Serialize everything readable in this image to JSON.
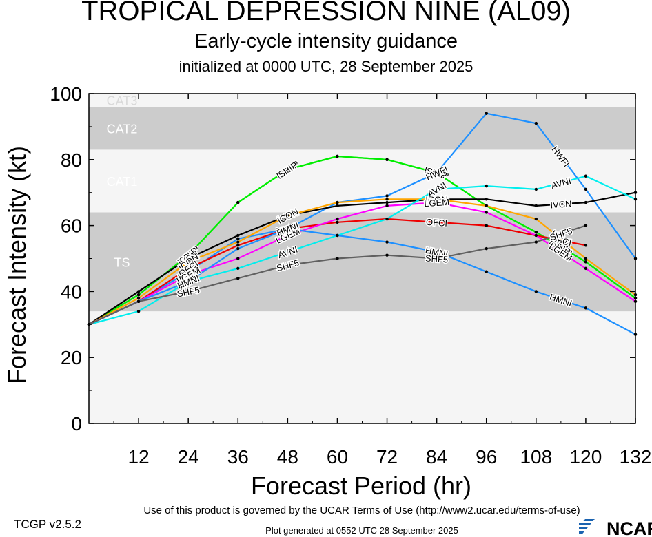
{
  "titles": {
    "main": "TROPICAL DEPRESSION NINE (AL09)",
    "subtitle": "Early-cycle intensity guidance",
    "init": "initialized at 0000 UTC, 28 September 2025"
  },
  "footer": {
    "version": "TCGP v2.5.2",
    "terms": "Use of this product is governed by the UCAR Terms of Use (http://www2.ucar.edu/terms-of-use)",
    "generated": "Plot generated at 0552 UTC   28 September 2025",
    "logo_text": "NCAR"
  },
  "colors": {
    "band_gray": "#cccccc",
    "band_light": "#f5f5f5",
    "band_label": "#ffffff",
    "cat3_label": "#d9d9d9"
  },
  "chart_data": {
    "type": "line",
    "xlabel": "Forecast Period (hr)",
    "ylabel": "Forecast Intensity (kt)",
    "xlim": [
      0,
      132
    ],
    "ylim": [
      0,
      100
    ],
    "xticks": [
      12,
      24,
      36,
      48,
      60,
      72,
      84,
      96,
      108,
      120,
      132
    ],
    "yticks": [
      0,
      20,
      40,
      60,
      80,
      100
    ],
    "grid": false,
    "bands": [
      {
        "label": "TS",
        "from": 34,
        "to": 64,
        "shade": "gray"
      },
      {
        "label": "CAT1",
        "from": 64,
        "to": 83,
        "shade": "light"
      },
      {
        "label": "CAT2",
        "from": 83,
        "to": 96,
        "shade": "gray"
      },
      {
        "label": "CAT3",
        "from": 96,
        "to": 100,
        "shade": "light"
      }
    ],
    "below_band_shade": "light",
    "series": [
      {
        "name": "DSHP",
        "color": "#00ee00",
        "x": [
          0,
          12,
          24,
          36,
          48,
          60,
          72,
          84,
          96,
          108,
          120,
          132
        ],
        "y": [
          30,
          39,
          51,
          67,
          77,
          81,
          80,
          76,
          66,
          58,
          49,
          38
        ]
      },
      {
        "name": "SHIP",
        "color": "#00ee00",
        "x": [
          0,
          12,
          24,
          36,
          48,
          60,
          72,
          84,
          96,
          108,
          120,
          132
        ],
        "y": [
          30,
          39,
          51,
          67,
          77,
          81,
          80,
          76,
          66,
          58,
          49,
          38
        ]
      },
      {
        "name": "HWFI",
        "color": "#1e90ff",
        "x": [
          0,
          12,
          24,
          36,
          48,
          60,
          72,
          84,
          96,
          108,
          120,
          132
        ],
        "y": [
          30,
          37,
          46,
          56,
          59,
          67,
          69,
          76,
          94,
          91,
          71,
          50
        ]
      },
      {
        "name": "IVCN",
        "color": "#000000",
        "x": [
          0,
          12,
          24,
          36,
          48,
          60,
          72,
          84,
          96,
          108,
          120,
          132
        ],
        "y": [
          30,
          40,
          50,
          57,
          63,
          66,
          67,
          68,
          68,
          66,
          67,
          70
        ]
      },
      {
        "name": "ICON",
        "color": "#ffa500",
        "x": [
          0,
          12,
          24,
          36,
          48,
          60,
          72,
          84,
          96,
          108,
          120,
          132
        ],
        "y": [
          30,
          38,
          49,
          55,
          63,
          67,
          68,
          68,
          66,
          62,
          50,
          39
        ]
      },
      {
        "name": "OFCI",
        "color": "#ee0000",
        "x": [
          0,
          12,
          24,
          36,
          48,
          60,
          72,
          84,
          96,
          108,
          120
        ],
        "y": [
          30,
          37,
          47,
          54,
          59,
          61,
          62,
          61,
          60,
          57,
          54
        ]
      },
      {
        "name": "LGEM",
        "color": "#ff00ff",
        "x": [
          0,
          12,
          24,
          36,
          48,
          60,
          72,
          84,
          96,
          108,
          120,
          132
        ],
        "y": [
          30,
          37,
          45,
          50,
          57,
          62,
          66,
          67,
          64,
          57,
          47,
          37
        ]
      },
      {
        "name": "AVNI",
        "color": "#00eeee",
        "x": [
          0,
          12,
          24,
          36,
          48,
          60,
          72,
          84,
          96,
          108,
          120,
          132
        ],
        "y": [
          30,
          34,
          43,
          47,
          52,
          57,
          62,
          71,
          72,
          71,
          75,
          68
        ]
      },
      {
        "name": "HMNI",
        "color": "#1e90ff",
        "x": [
          0,
          12,
          24,
          36,
          48,
          60,
          72,
          84,
          96,
          108,
          120,
          132
        ],
        "y": [
          30,
          37,
          43,
          53,
          59,
          57,
          55,
          52,
          46,
          40,
          35,
          27
        ]
      },
      {
        "name": "SHF5",
        "color": "#606060",
        "x": [
          0,
          12,
          24,
          36,
          48,
          60,
          72,
          84,
          96,
          108,
          120
        ],
        "y": [
          30,
          37,
          40,
          44,
          48,
          50,
          51,
          50,
          53,
          55,
          60
        ]
      }
    ]
  }
}
